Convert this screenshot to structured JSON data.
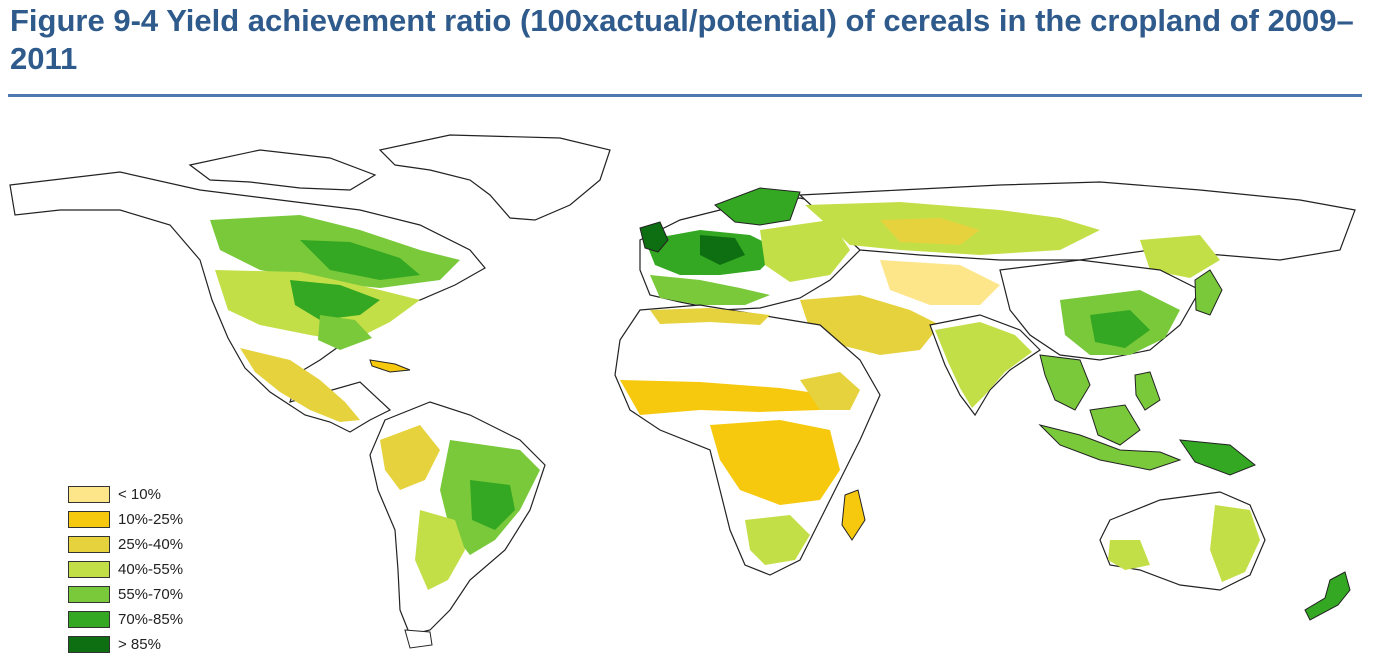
{
  "title": "Figure 9-4 Yield achievement ratio (100xactual/potential) of cereals in the cropland of 2009–2011",
  "legend": [
    {
      "label": "< 10%",
      "color": "#fde68a"
    },
    {
      "label": "10%-25%",
      "color": "#f6c90e"
    },
    {
      "label": "25%-40%",
      "color": "#e6d23c"
    },
    {
      "label": "40%-55%",
      "color": "#c3df48"
    },
    {
      "label": "55%-70%",
      "color": "#79c93a"
    },
    {
      "label": "70%-85%",
      "color": "#34a822"
    },
    {
      "label": "> 85%",
      "color": "#0e6e12"
    }
  ],
  "colors": {
    "title": "#2f5a8c",
    "rule": "#4f7ab0",
    "coastline": "#222222"
  }
}
